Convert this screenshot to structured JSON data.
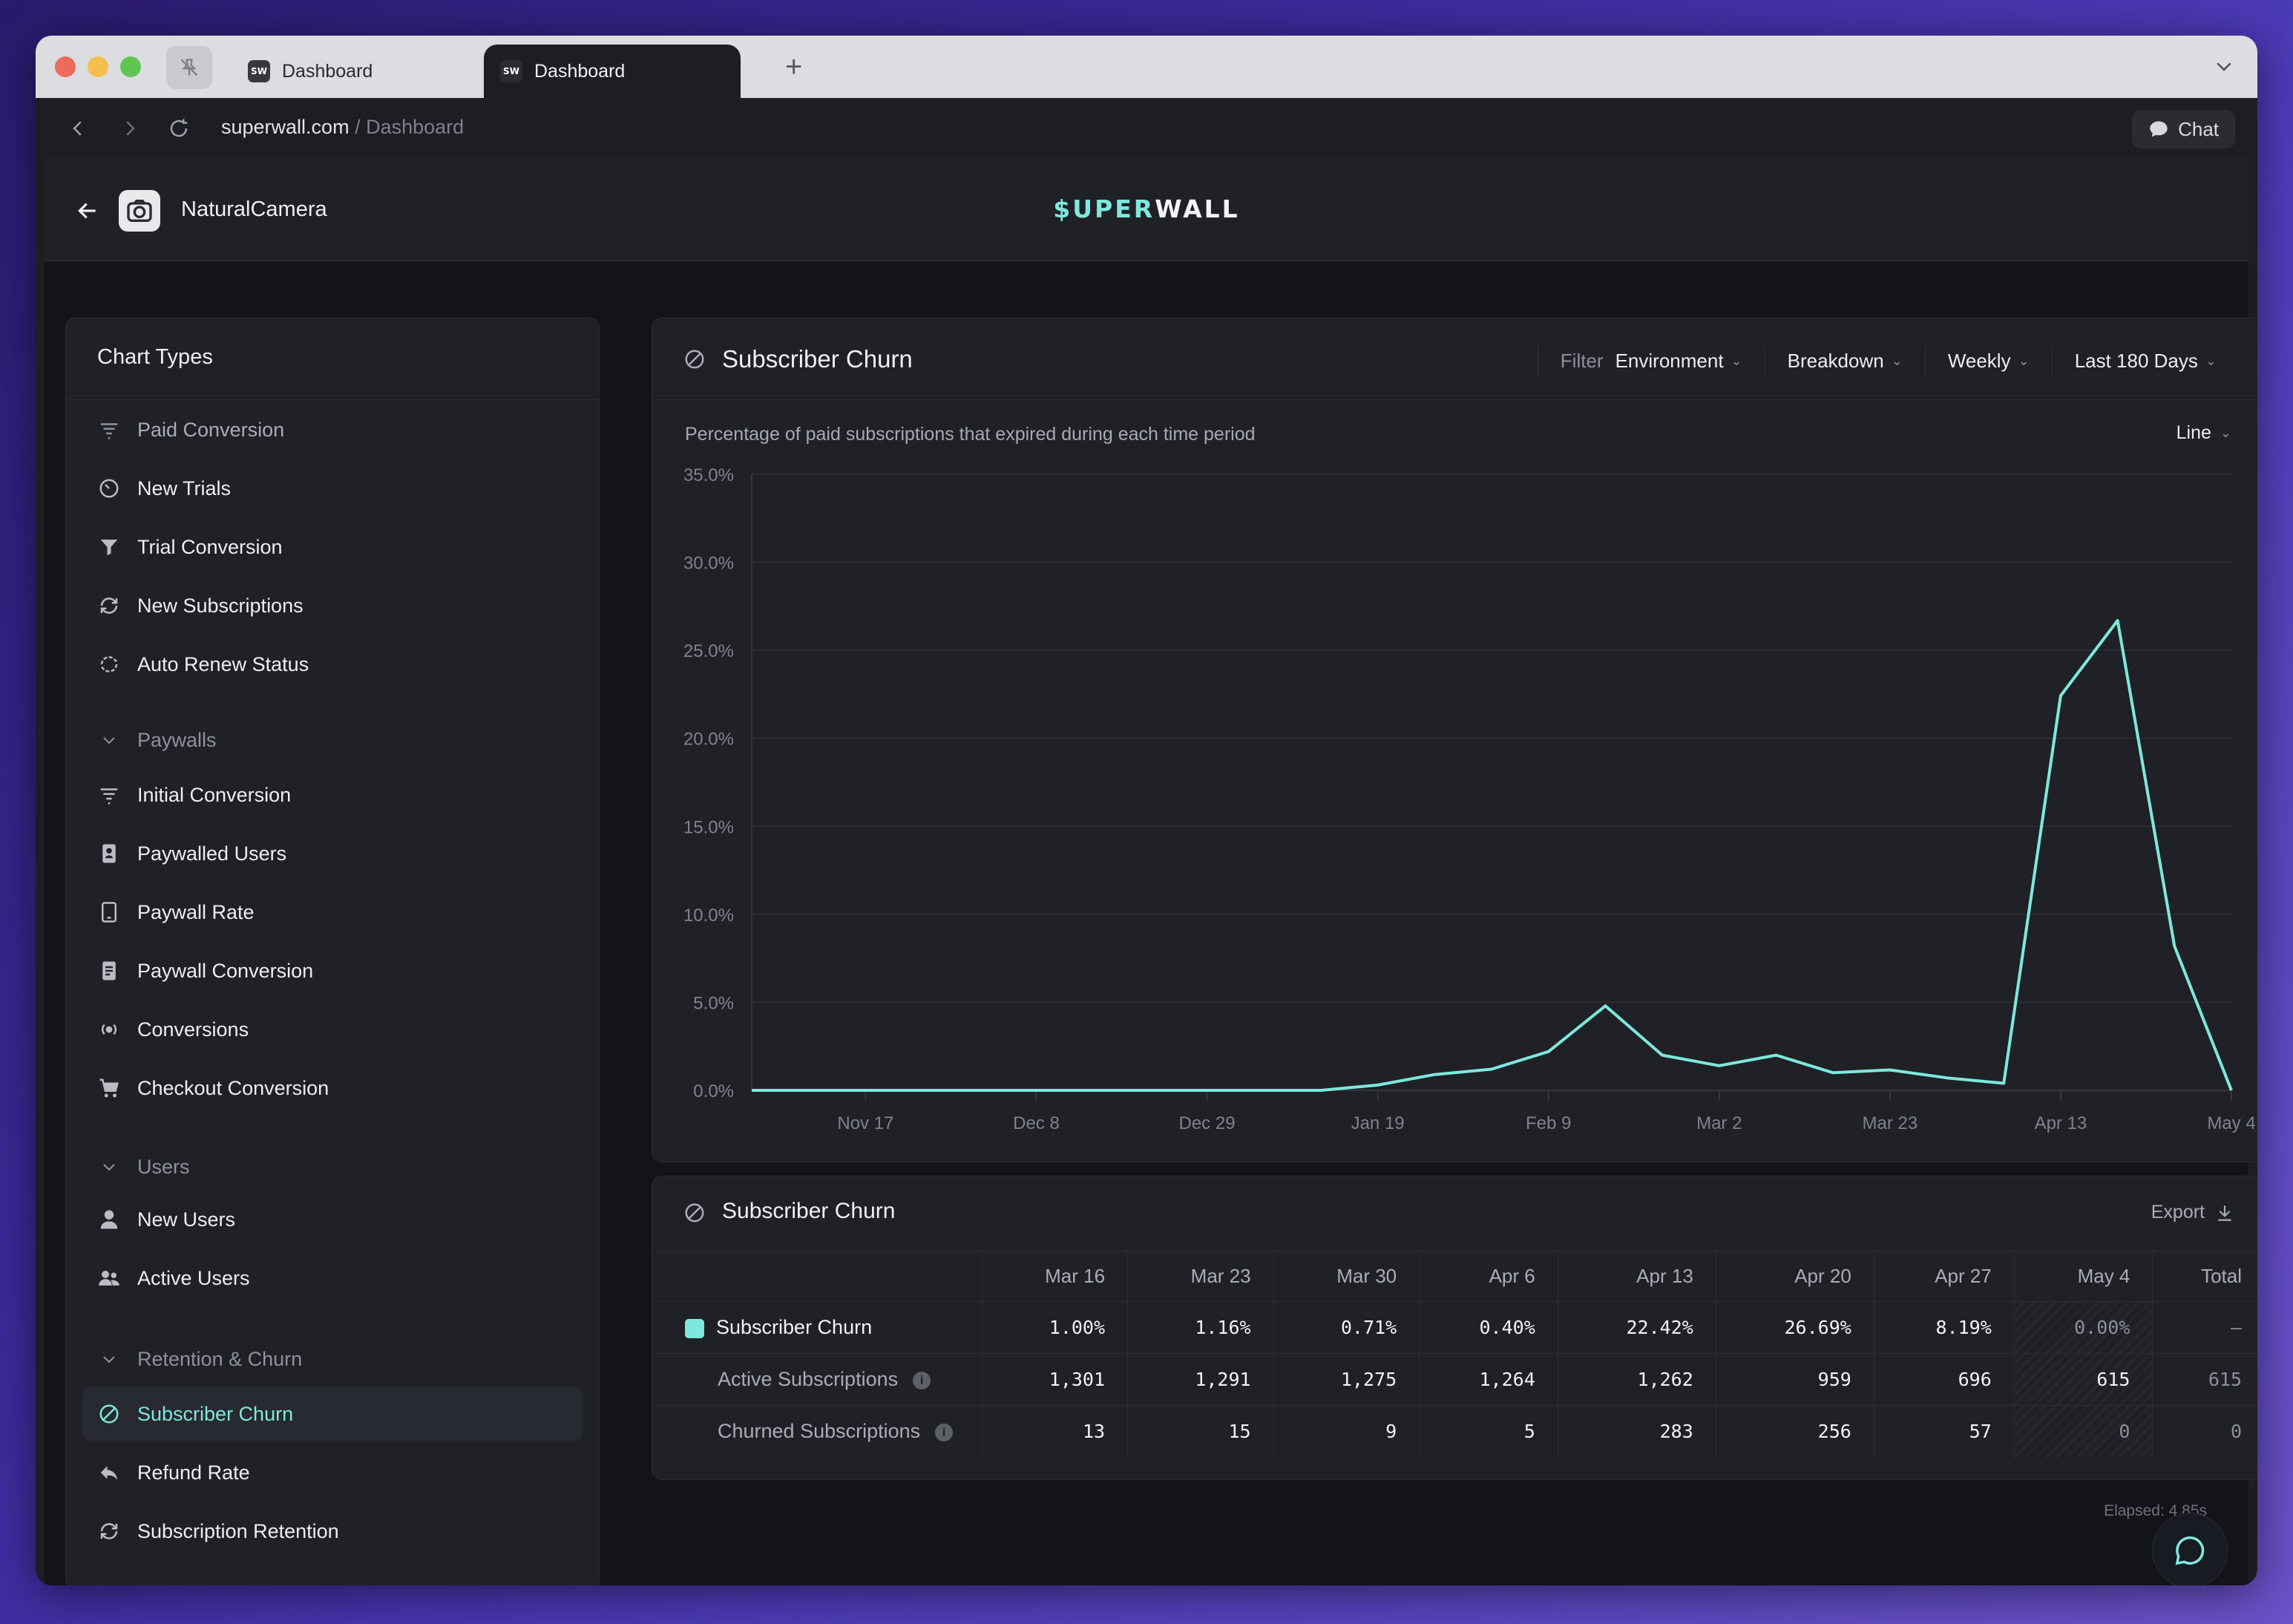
{
  "browser": {
    "tabs": [
      {
        "title": "Dashboard",
        "favicon": "SW"
      },
      {
        "title": "Dashboard",
        "favicon": "SW"
      }
    ],
    "url_domain": "superwall.com",
    "url_path": " / Dashboard",
    "chat_label": "Chat"
  },
  "header": {
    "app_name": "NaturalCamera",
    "logo_accent": "$UPER",
    "logo_rest": "WALL"
  },
  "sidebar": {
    "title": "Chart Types",
    "items": [
      {
        "label": "Paid Conversion",
        "icon": "filter-lines-icon",
        "muted": true
      },
      {
        "label": "New Trials",
        "icon": "timer-icon"
      },
      {
        "label": "Trial Conversion",
        "icon": "funnel-icon"
      },
      {
        "label": "New Subscriptions",
        "icon": "refresh-icon"
      },
      {
        "label": "Auto Renew Status",
        "icon": "renew-icon"
      }
    ],
    "section_paywalls": "Paywalls",
    "paywall_items": [
      {
        "label": "Initial Conversion",
        "icon": "filter-lines-icon"
      },
      {
        "label": "Paywalled Users",
        "icon": "user-card-icon"
      },
      {
        "label": "Paywall Rate",
        "icon": "tablet-icon"
      },
      {
        "label": "Paywall Conversion",
        "icon": "document-icon"
      },
      {
        "label": "Conversions",
        "icon": "broadcast-icon"
      },
      {
        "label": "Checkout Conversion",
        "icon": "cart-icon"
      }
    ],
    "section_users": "Users",
    "user_items": [
      {
        "label": "New Users",
        "icon": "user-icon"
      },
      {
        "label": "Active Users",
        "icon": "users-icon"
      }
    ],
    "section_retention": "Retention & Churn",
    "retention_items": [
      {
        "label": "Subscriber Churn",
        "icon": "slash-circle-icon",
        "active": true
      },
      {
        "label": "Refund Rate",
        "icon": "reply-icon"
      },
      {
        "label": "Subscription Retention",
        "icon": "refresh-icon"
      }
    ]
  },
  "chart_panel": {
    "title": "Subscriber Churn",
    "filter_label": "Filter",
    "filter_value": "Environment",
    "breakdown": "Breakdown",
    "interval": "Weekly",
    "range": "Last 180 Days",
    "subtitle": "Percentage of paid subscriptions that expired during each time period",
    "chart_style": "Line"
  },
  "chart_data": {
    "type": "line",
    "title": "Subscriber Churn",
    "ylabel": "",
    "xlabel": "",
    "ylim": [
      0,
      35
    ],
    "y_ticks": [
      "0.0%",
      "5.0%",
      "10.0%",
      "15.0%",
      "20.0%",
      "25.0%",
      "30.0%",
      "35.0%"
    ],
    "x_tick_labels": [
      "Nov 17",
      "Dec 8",
      "Dec 29",
      "Jan 19",
      "Feb 9",
      "Mar 2",
      "Mar 23",
      "Apr 13",
      "May 4"
    ],
    "x": [
      "Nov 3",
      "Nov 10",
      "Nov 17",
      "Nov 24",
      "Dec 1",
      "Dec 8",
      "Dec 15",
      "Dec 22",
      "Dec 29",
      "Jan 5",
      "Jan 12",
      "Jan 19",
      "Jan 26",
      "Feb 2",
      "Feb 9",
      "Feb 16",
      "Feb 23",
      "Mar 2",
      "Mar 9",
      "Mar 16",
      "Mar 23",
      "Mar 30",
      "Apr 6",
      "Apr 13",
      "Apr 20",
      "Apr 27",
      "May 4"
    ],
    "series": [
      {
        "name": "Subscriber Churn",
        "color": "#7ee8dd",
        "values": [
          0,
          0,
          0,
          0,
          0,
          0,
          0,
          0,
          0,
          0,
          0,
          0.3,
          0.9,
          1.2,
          2.2,
          4.8,
          2.0,
          1.4,
          2.0,
          1.0,
          1.16,
          0.71,
          0.4,
          22.42,
          26.69,
          8.19,
          0.0
        ]
      }
    ],
    "grid": true,
    "legend": "none"
  },
  "table": {
    "title": "Subscriber Churn",
    "export_label": "Export",
    "columns": [
      "Mar 16",
      "Mar 23",
      "Mar 30",
      "Apr 6",
      "Apr 13",
      "Apr 20",
      "Apr 27",
      "May 4",
      "Total"
    ],
    "rows": [
      {
        "label": "Subscriber Churn",
        "cells": [
          "1.00%",
          "1.16%",
          "0.71%",
          "0.40%",
          "22.42%",
          "26.69%",
          "8.19%",
          "0.00%",
          "–"
        ]
      },
      {
        "label": "Active Subscriptions",
        "cells": [
          "1,301",
          "1,291",
          "1,275",
          "1,264",
          "1,262",
          "959",
          "696",
          "615",
          "615"
        ]
      },
      {
        "label": "Churned Subscriptions",
        "cells": [
          "13",
          "15",
          "9",
          "5",
          "283",
          "256",
          "57",
          "0",
          "0"
        ]
      }
    ]
  },
  "footer": {
    "elapsed": "Elapsed: 4.85s"
  },
  "colors": {
    "accent": "#7ee8dd",
    "background": "#121419",
    "panel": "#1f2126"
  }
}
